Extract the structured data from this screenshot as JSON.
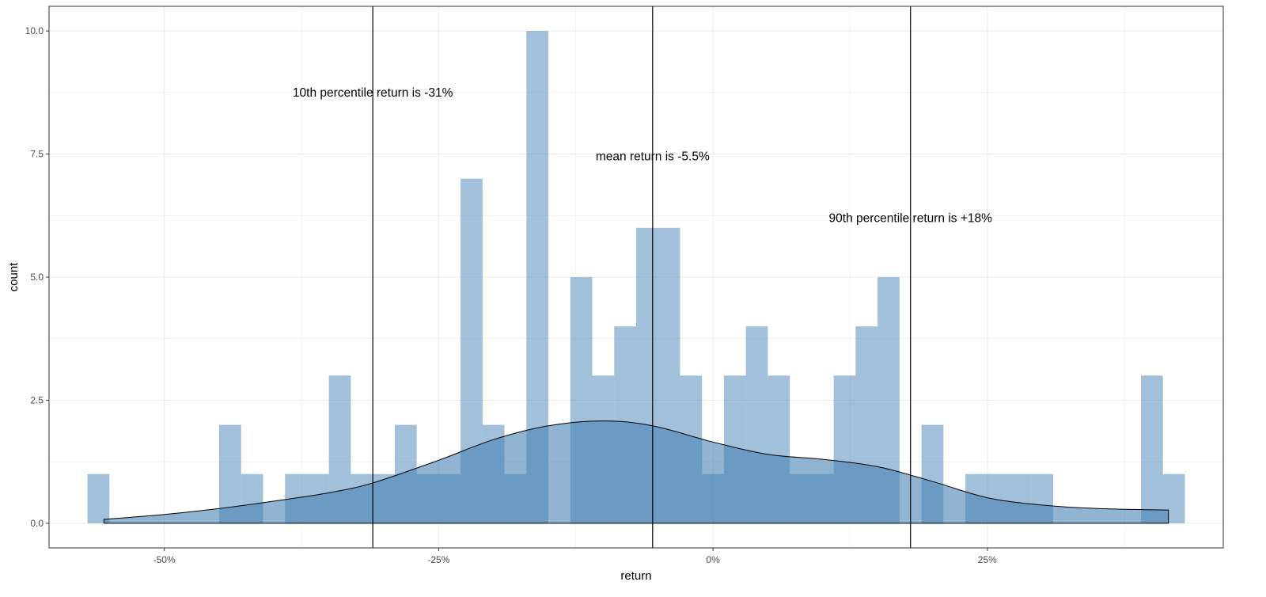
{
  "chart_data": {
    "type": "bar",
    "xlabel": "return",
    "ylabel": "count",
    "xlim": [
      -0.605,
      0.465
    ],
    "ylim": [
      -0.5,
      10.5
    ],
    "bin_width": 0.02,
    "x_ticks": [
      {
        "value": -0.5,
        "label": "-50%"
      },
      {
        "value": -0.25,
        "label": "-25%"
      },
      {
        "value": 0,
        "label": "0%"
      },
      {
        "value": 0.25,
        "label": "25%"
      }
    ],
    "y_ticks": [
      {
        "value": 0,
        "label": "0.0"
      },
      {
        "value": 2.5,
        "label": "2.5"
      },
      {
        "value": 5,
        "label": "5.0"
      },
      {
        "value": 7.5,
        "label": "7.5"
      },
      {
        "value": 10,
        "label": "10.0"
      }
    ],
    "bins": [
      {
        "x": -0.56,
        "count": 1
      },
      {
        "x": -0.44,
        "count": 2
      },
      {
        "x": -0.42,
        "count": 1
      },
      {
        "x": -0.38,
        "count": 1
      },
      {
        "x": -0.36,
        "count": 1
      },
      {
        "x": -0.34,
        "count": 3
      },
      {
        "x": -0.32,
        "count": 1
      },
      {
        "x": -0.3,
        "count": 1
      },
      {
        "x": -0.28,
        "count": 2
      },
      {
        "x": -0.26,
        "count": 1
      },
      {
        "x": -0.24,
        "count": 1
      },
      {
        "x": -0.22,
        "count": 7
      },
      {
        "x": -0.2,
        "count": 2
      },
      {
        "x": -0.18,
        "count": 1
      },
      {
        "x": -0.16,
        "count": 10
      },
      {
        "x": -0.12,
        "count": 5
      },
      {
        "x": -0.1,
        "count": 3
      },
      {
        "x": -0.08,
        "count": 4
      },
      {
        "x": -0.06,
        "count": 6
      },
      {
        "x": -0.04,
        "count": 6
      },
      {
        "x": -0.02,
        "count": 3
      },
      {
        "x": 0.0,
        "count": 1
      },
      {
        "x": 0.02,
        "count": 3
      },
      {
        "x": 0.04,
        "count": 4
      },
      {
        "x": 0.06,
        "count": 3
      },
      {
        "x": 0.08,
        "count": 1
      },
      {
        "x": 0.1,
        "count": 1
      },
      {
        "x": 0.12,
        "count": 3
      },
      {
        "x": 0.14,
        "count": 4
      },
      {
        "x": 0.16,
        "count": 5
      },
      {
        "x": 0.2,
        "count": 2
      },
      {
        "x": 0.24,
        "count": 1
      },
      {
        "x": 0.26,
        "count": 1
      },
      {
        "x": 0.28,
        "count": 1
      },
      {
        "x": 0.3,
        "count": 1
      },
      {
        "x": 0.4,
        "count": 3
      },
      {
        "x": 0.42,
        "count": 1
      }
    ],
    "density": [
      [
        -0.555,
        0.08
      ],
      [
        -0.5,
        0.18
      ],
      [
        -0.45,
        0.3
      ],
      [
        -0.4,
        0.45
      ],
      [
        -0.35,
        0.62
      ],
      [
        -0.31,
        0.82
      ],
      [
        -0.25,
        1.28
      ],
      [
        -0.2,
        1.7
      ],
      [
        -0.15,
        1.98
      ],
      [
        -0.1,
        2.08
      ],
      [
        -0.055,
        1.98
      ],
      [
        0.0,
        1.65
      ],
      [
        0.05,
        1.4
      ],
      [
        0.1,
        1.3
      ],
      [
        0.15,
        1.15
      ],
      [
        0.2,
        0.85
      ],
      [
        0.25,
        0.52
      ],
      [
        0.3,
        0.37
      ],
      [
        0.35,
        0.3
      ],
      [
        0.415,
        0.27
      ]
    ],
    "vlines": [
      {
        "x": -0.31,
        "label": "10th percentile return is -31%",
        "label_y": 8.75
      },
      {
        "x": -0.055,
        "label": "mean return is -5.5%",
        "label_y": 7.45
      },
      {
        "x": 0.18,
        "label": "90th percentile return is +18%",
        "label_y": 6.2
      }
    ],
    "bar_color": "#4682b4",
    "bar_opacity": 0.5,
    "density_fill": "#4682b4",
    "density_opacity": 0.6,
    "grid": true
  }
}
